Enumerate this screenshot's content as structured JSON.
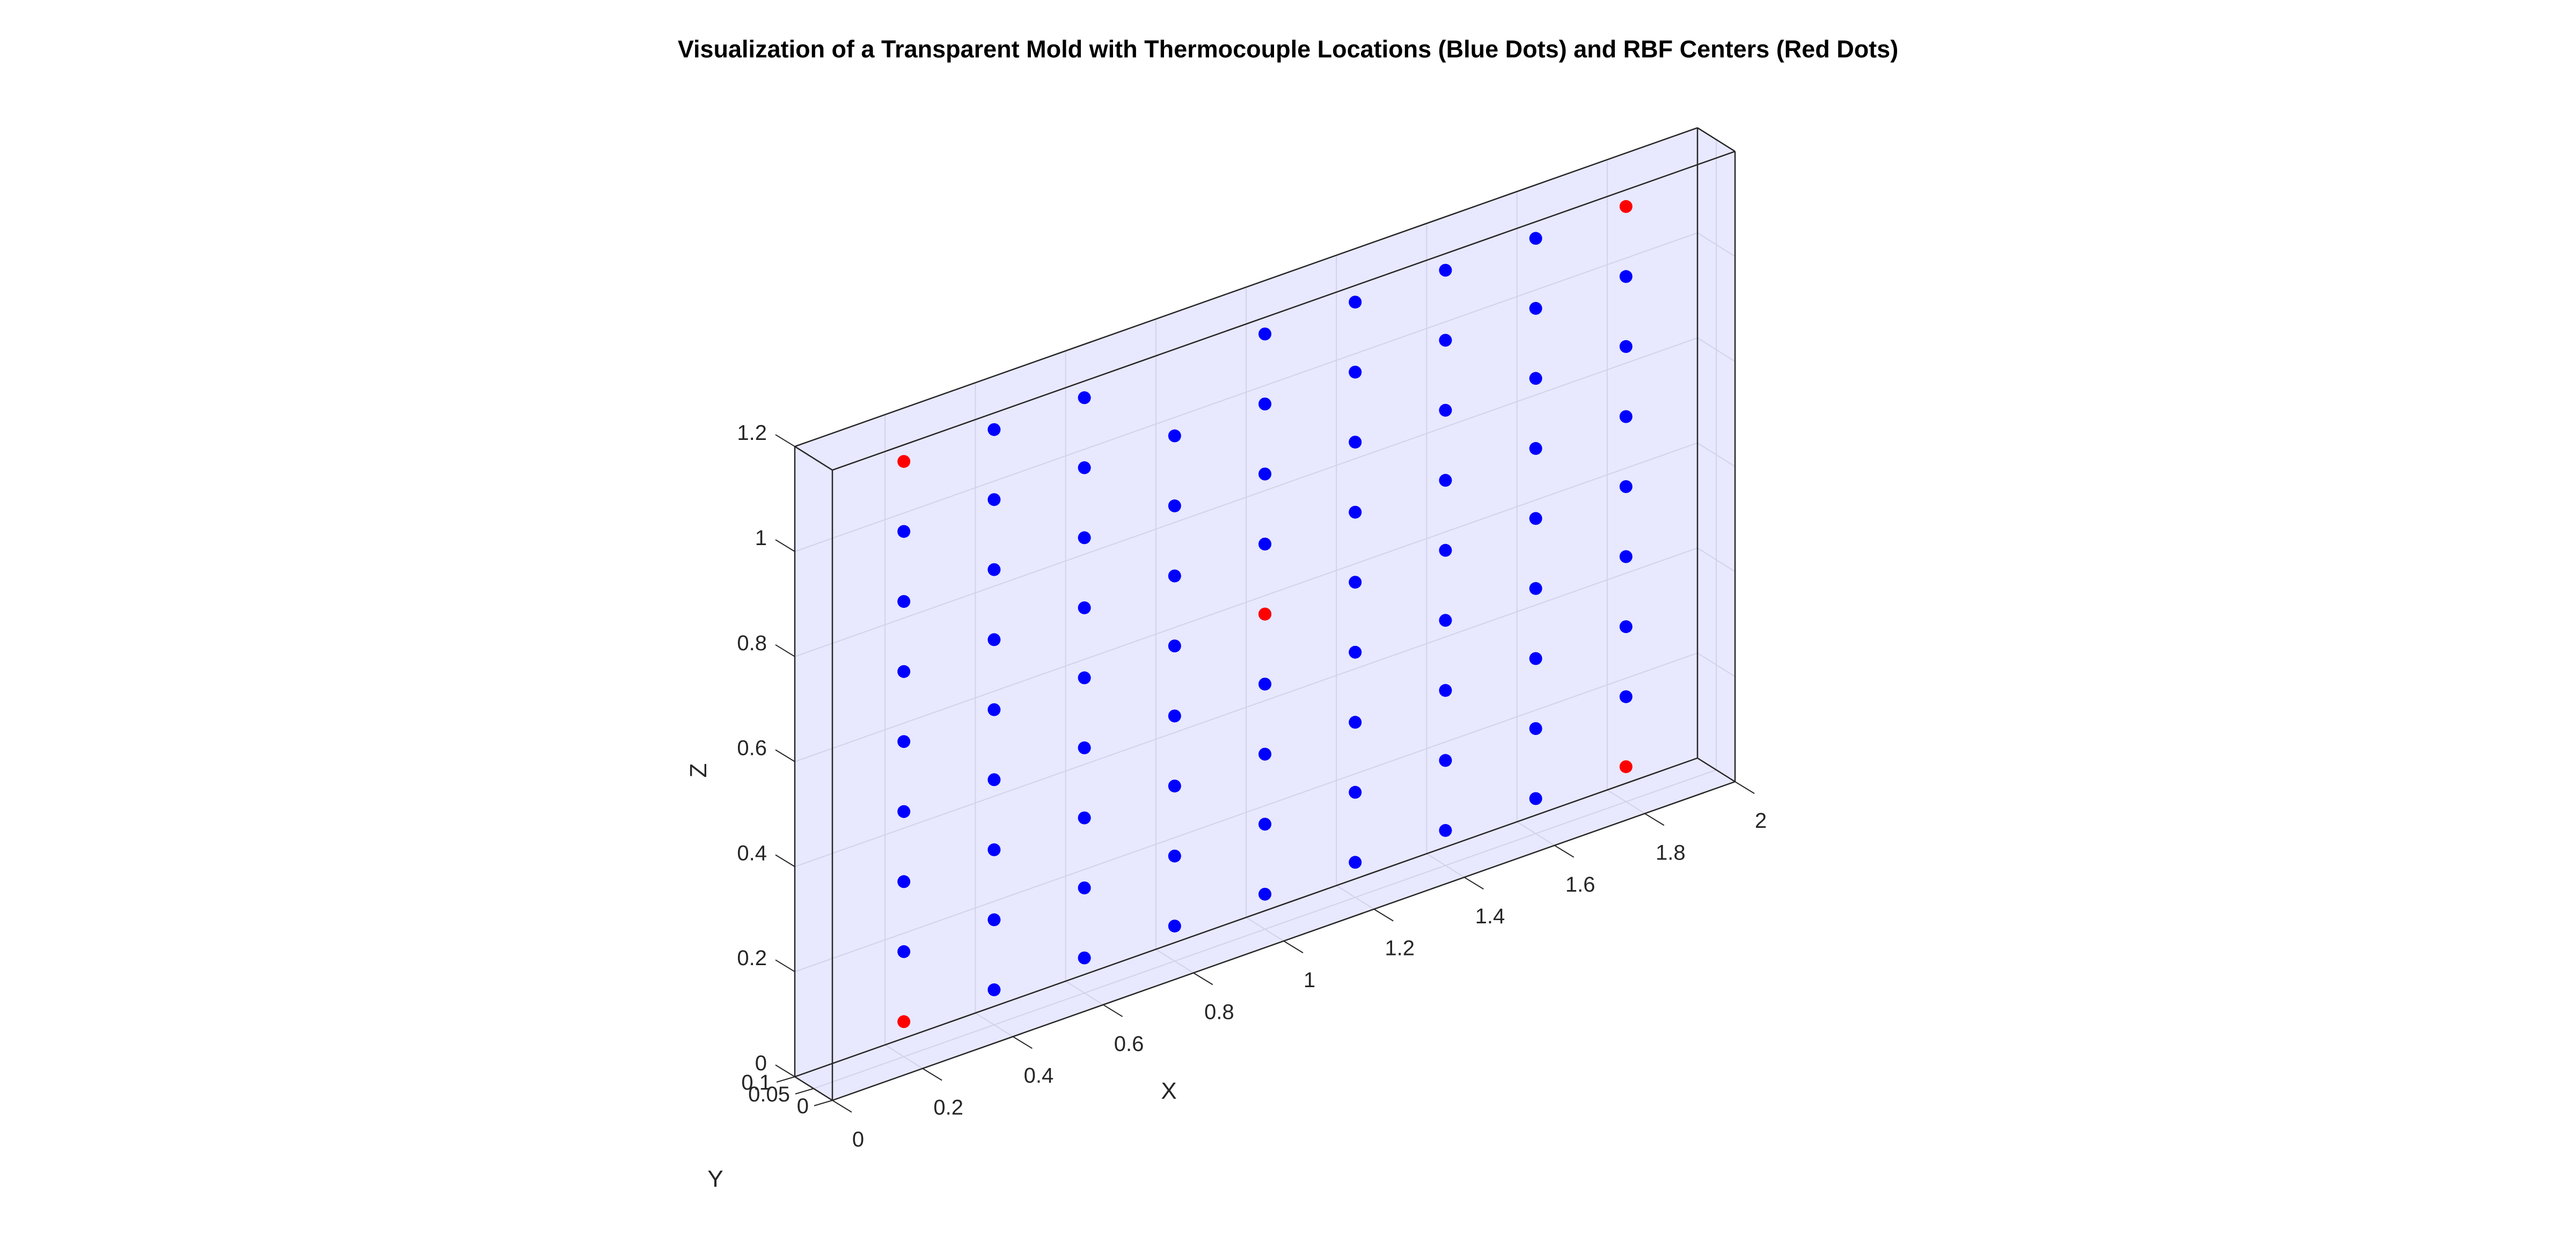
{
  "chart_data": {
    "type": "scatter3d",
    "title": "Visualization of a Transparent Mold with Thermocouple Locations (Blue Dots) and RBF Centers (Red Dots)",
    "xlabel": "X",
    "ylabel": "Y",
    "zlabel": "Z",
    "xlim": [
      0,
      2
    ],
    "ylim": [
      0,
      0.1
    ],
    "zlim": [
      0,
      1.2
    ],
    "x_ticks": [
      {
        "value": 0,
        "label": "0"
      },
      {
        "value": 0.2,
        "label": "0.2"
      },
      {
        "value": 0.4,
        "label": "0.4"
      },
      {
        "value": 0.6,
        "label": "0.6"
      },
      {
        "value": 0.8,
        "label": "0.8"
      },
      {
        "value": 1.0,
        "label": "1"
      },
      {
        "value": 1.2,
        "label": "1.2"
      },
      {
        "value": 1.4,
        "label": "1.4"
      },
      {
        "value": 1.6,
        "label": "1.6"
      },
      {
        "value": 1.8,
        "label": "1.8"
      },
      {
        "value": 2.0,
        "label": "2"
      }
    ],
    "y_ticks": [
      {
        "value": 0,
        "label": "0"
      },
      {
        "value": 0.05,
        "label": "0.05"
      },
      {
        "value": 0.1,
        "label": "0.1"
      }
    ],
    "z_ticks": [
      {
        "value": 0,
        "label": "0"
      },
      {
        "value": 0.2,
        "label": "0.2"
      },
      {
        "value": 0.4,
        "label": "0.4"
      },
      {
        "value": 0.6,
        "label": "0.6"
      },
      {
        "value": 0.8,
        "label": "0.8"
      },
      {
        "value": 1.0,
        "label": "1"
      },
      {
        "value": 1.2,
        "label": "1.2"
      }
    ],
    "grid": true,
    "mold_box": {
      "x": [
        0,
        2
      ],
      "y": [
        0,
        0.1
      ],
      "z": [
        0,
        1.2
      ],
      "face_color": "#ccccff"
    },
    "series": [
      {
        "color": "#0000ff",
        "marker": "dot",
        "x_columns": [
          0.2,
          0.4,
          0.6,
          0.8,
          1.0,
          1.2,
          1.4,
          1.6,
          1.8
        ],
        "y": 0.05,
        "z_rows": [
          0.2,
          0.3333,
          0.4667,
          0.6,
          0.7333,
          0.8667,
          1.0
        ],
        "extra_points": [
          [
            0.2,
            0.05,
            0.0667
          ],
          [
            0.2,
            0.05,
            1.1333
          ],
          [
            0.4,
            0.05,
            0.0667
          ],
          [
            0.4,
            0.05,
            1.1333
          ],
          [
            0.6,
            0.05,
            0.0667
          ],
          [
            0.6,
            0.05,
            1.1333
          ],
          [
            0.8,
            0.05,
            0.0667
          ],
          [
            0.8,
            0.05,
            1.1333
          ],
          [
            1.0,
            0.05,
            0.0667
          ],
          [
            1.0,
            0.05,
            1.1333
          ],
          [
            1.2,
            0.05,
            0.0667
          ],
          [
            1.2,
            0.05,
            1.1333
          ],
          [
            1.4,
            0.05,
            0.0667
          ],
          [
            1.4,
            0.05,
            1.1333
          ],
          [
            1.6,
            0.05,
            0.0667
          ],
          [
            1.6,
            0.05,
            1.1333
          ],
          [
            1.8,
            0.05,
            0.0667
          ],
          [
            1.8,
            0.05,
            1.1333
          ]
        ],
        "exclude_points": [
          [
            0.2,
            0.05,
            0.0667
          ],
          [
            0.2,
            0.05,
            1.1333
          ],
          [
            0.8,
            0.05,
            1.1333
          ],
          [
            1.8,
            0.05,
            0.0667
          ],
          [
            1.8,
            0.05,
            1.1333
          ]
        ]
      },
      {
        "color": "#ff0000",
        "marker": "dot",
        "points": [
          [
            0.2,
            0.05,
            0.0667
          ],
          [
            0.2,
            0.05,
            1.1333
          ],
          [
            1.0,
            0.05,
            0.6
          ],
          [
            1.8,
            0.05,
            0.0667
          ],
          [
            1.8,
            0.05,
            1.1333
          ]
        ]
      }
    ]
  }
}
